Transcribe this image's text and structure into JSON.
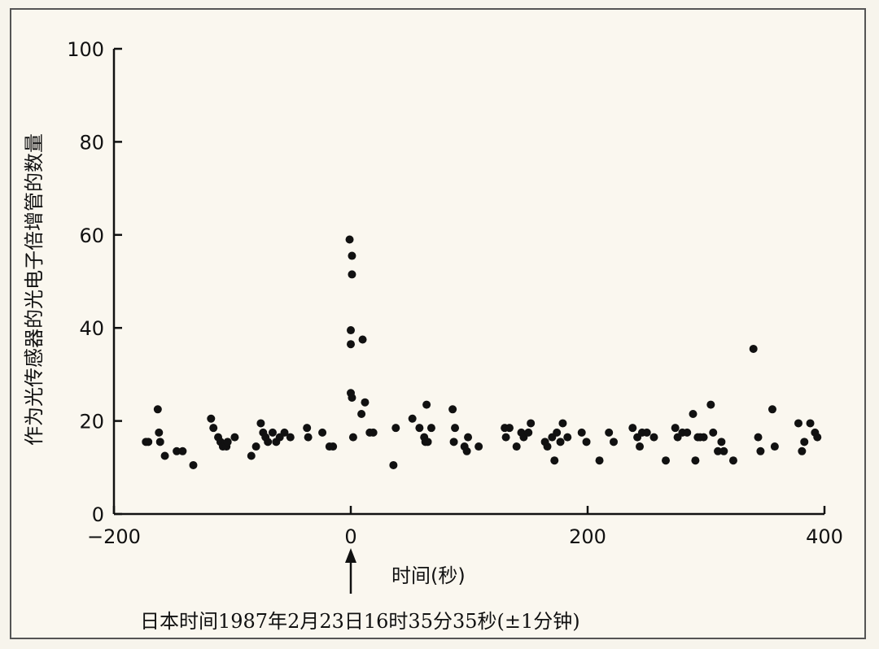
{
  "chart_data": {
    "type": "scatter",
    "title": "",
    "xlabel": "时间(秒)",
    "ylabel": "作为光传感器的光电子倍增管的数量",
    "xlim": [
      -200,
      400
    ],
    "ylim": [
      0,
      100
    ],
    "x_ticks": [
      -200,
      0,
      200,
      400
    ],
    "y_ticks": [
      0,
      20,
      40,
      60,
      80,
      100
    ],
    "x_tick_labels": [
      "−200",
      "0",
      "200",
      "400"
    ],
    "y_tick_labels": [
      "0",
      "20",
      "40",
      "60",
      "80",
      "100"
    ],
    "grid": false,
    "annotation": {
      "arrow_x": 0,
      "text": "日本时间1987年2月23日16时35分35秒(±1分钟)"
    },
    "series": [
      {
        "name": "events",
        "points": [
          [
            -173,
            15.5
          ],
          [
            -171,
            15.5
          ],
          [
            -163,
            22.5
          ],
          [
            -162,
            17.5
          ],
          [
            -161,
            15.5
          ],
          [
            -157,
            12.5
          ],
          [
            -147,
            13.5
          ],
          [
            -142,
            13.5
          ],
          [
            -133,
            10.5
          ],
          [
            -118,
            20.5
          ],
          [
            -116,
            18.5
          ],
          [
            -112,
            16.5
          ],
          [
            -110,
            15.5
          ],
          [
            -108,
            14.5
          ],
          [
            -105,
            14.5
          ],
          [
            -104,
            15.5
          ],
          [
            -98,
            16.5
          ],
          [
            -84,
            12.5
          ],
          [
            -80,
            14.5
          ],
          [
            -76,
            19.5
          ],
          [
            -74,
            17.5
          ],
          [
            -72,
            16.5
          ],
          [
            -70,
            15.5
          ],
          [
            -66,
            17.5
          ],
          [
            -63,
            15.5
          ],
          [
            -60,
            16.5
          ],
          [
            -56,
            17.5
          ],
          [
            -51,
            16.5
          ],
          [
            -37,
            18.5
          ],
          [
            -36,
            16.5
          ],
          [
            -24,
            17.5
          ],
          [
            -18,
            14.5
          ],
          [
            -15,
            14.5
          ],
          [
            -1,
            59
          ],
          [
            1,
            55.5
          ],
          [
            1,
            51.5
          ],
          [
            0,
            39.5
          ],
          [
            0,
            36.5
          ],
          [
            0,
            26
          ],
          [
            1,
            25
          ],
          [
            2,
            16.5
          ],
          [
            9,
            21.5
          ],
          [
            10,
            37.5
          ],
          [
            12,
            24
          ],
          [
            16,
            17.5
          ],
          [
            19,
            17.5
          ],
          [
            36,
            10.5
          ],
          [
            38,
            18.5
          ],
          [
            52,
            20.5
          ],
          [
            58,
            18.5
          ],
          [
            62,
            16.5
          ],
          [
            63,
            15.5
          ],
          [
            64,
            23.5
          ],
          [
            65,
            15.5
          ],
          [
            68,
            18.5
          ],
          [
            86,
            22.5
          ],
          [
            87,
            15.5
          ],
          [
            88,
            18.5
          ],
          [
            96,
            14.5
          ],
          [
            98,
            13.5
          ],
          [
            99,
            16.5
          ],
          [
            108,
            14.5
          ],
          [
            130,
            18.5
          ],
          [
            131,
            16.5
          ],
          [
            134,
            18.5
          ],
          [
            140,
            14.5
          ],
          [
            144,
            17.5
          ],
          [
            146,
            16.5
          ],
          [
            150,
            17.5
          ],
          [
            152,
            19.5
          ],
          [
            164,
            15.5
          ],
          [
            166,
            14.5
          ],
          [
            170,
            16.5
          ],
          [
            172,
            11.5
          ],
          [
            174,
            17.5
          ],
          [
            177,
            15.5
          ],
          [
            179,
            19.5
          ],
          [
            183,
            16.5
          ],
          [
            195,
            17.5
          ],
          [
            199,
            15.5
          ],
          [
            210,
            11.5
          ],
          [
            218,
            17.5
          ],
          [
            222,
            15.5
          ],
          [
            238,
            18.5
          ],
          [
            242,
            16.5
          ],
          [
            244,
            14.5
          ],
          [
            246,
            17.5
          ],
          [
            250,
            17.5
          ],
          [
            256,
            16.5
          ],
          [
            266,
            11.5
          ],
          [
            274,
            18.5
          ],
          [
            276,
            16.5
          ],
          [
            280,
            17.5
          ],
          [
            284,
            17.5
          ],
          [
            289,
            21.5
          ],
          [
            291,
            11.5
          ],
          [
            293,
            16.5
          ],
          [
            295,
            16.5
          ],
          [
            298,
            16.5
          ],
          [
            304,
            23.5
          ],
          [
            306,
            17.5
          ],
          [
            310,
            13.5
          ],
          [
            313,
            15.5
          ],
          [
            315,
            13.5
          ],
          [
            323,
            11.5
          ],
          [
            340,
            35.5
          ],
          [
            344,
            16.5
          ],
          [
            346,
            13.5
          ],
          [
            356,
            22.5
          ],
          [
            358,
            14.5
          ],
          [
            378,
            19.5
          ],
          [
            381,
            13.5
          ],
          [
            383,
            15.5
          ],
          [
            388,
            19.5
          ],
          [
            392,
            17.5
          ],
          [
            394,
            16.5
          ]
        ]
      }
    ]
  }
}
